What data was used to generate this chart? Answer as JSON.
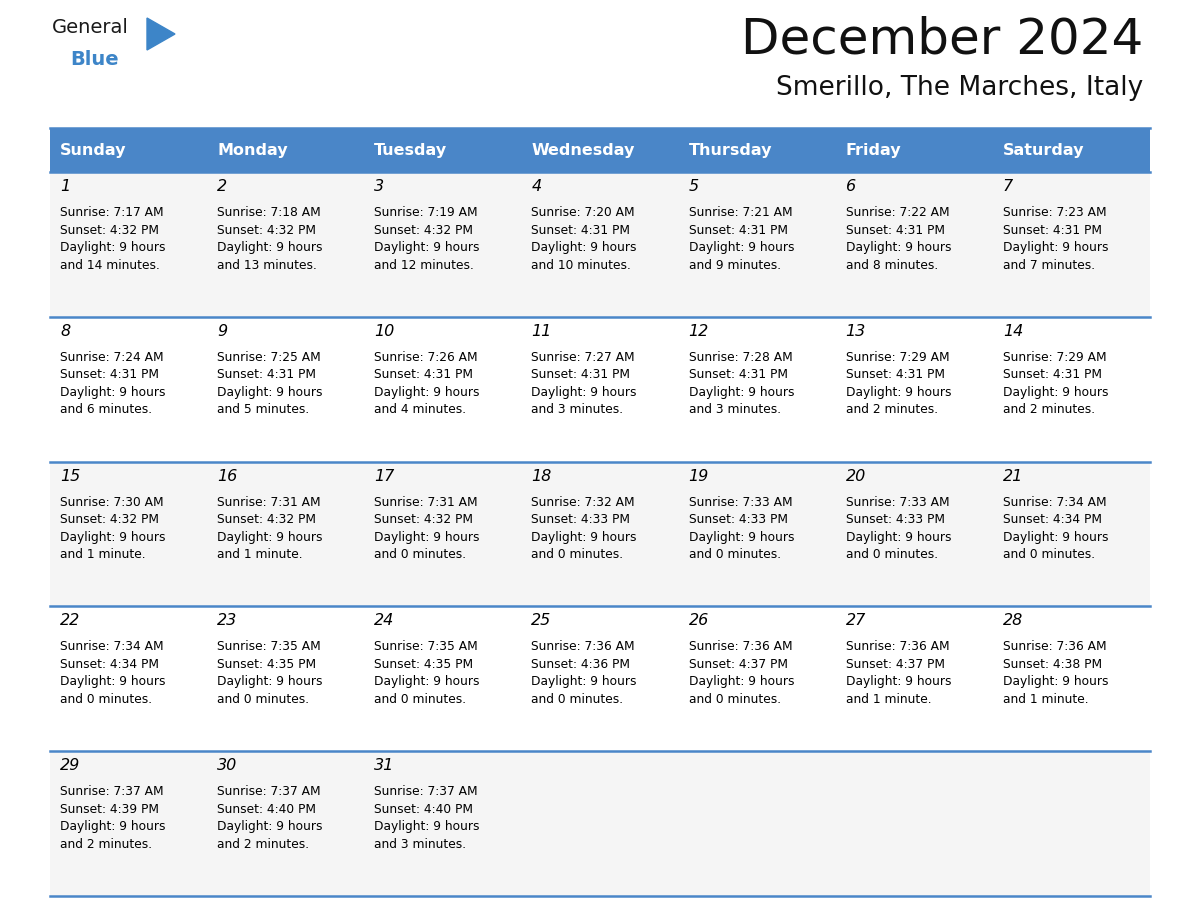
{
  "title": "December 2024",
  "subtitle": "Smerillo, The Marches, Italy",
  "header_color": "#4a86c8",
  "header_text_color": "#ffffff",
  "cell_bg_odd": "#f5f5f5",
  "cell_bg_even": "#ffffff",
  "border_color": "#4a86c8",
  "text_color": "#000000",
  "day_headers": [
    "Sunday",
    "Monday",
    "Tuesday",
    "Wednesday",
    "Thursday",
    "Friday",
    "Saturday"
  ],
  "weeks": [
    [
      {
        "day": "1",
        "sunrise": "7:17 AM",
        "sunset": "4:32 PM",
        "daylight": "9 hours",
        "daylight2": "and 14 minutes."
      },
      {
        "day": "2",
        "sunrise": "7:18 AM",
        "sunset": "4:32 PM",
        "daylight": "9 hours",
        "daylight2": "and 13 minutes."
      },
      {
        "day": "3",
        "sunrise": "7:19 AM",
        "sunset": "4:32 PM",
        "daylight": "9 hours",
        "daylight2": "and 12 minutes."
      },
      {
        "day": "4",
        "sunrise": "7:20 AM",
        "sunset": "4:31 PM",
        "daylight": "9 hours",
        "daylight2": "and 10 minutes."
      },
      {
        "day": "5",
        "sunrise": "7:21 AM",
        "sunset": "4:31 PM",
        "daylight": "9 hours",
        "daylight2": "and 9 minutes."
      },
      {
        "day": "6",
        "sunrise": "7:22 AM",
        "sunset": "4:31 PM",
        "daylight": "9 hours",
        "daylight2": "and 8 minutes."
      },
      {
        "day": "7",
        "sunrise": "7:23 AM",
        "sunset": "4:31 PM",
        "daylight": "9 hours",
        "daylight2": "and 7 minutes."
      }
    ],
    [
      {
        "day": "8",
        "sunrise": "7:24 AM",
        "sunset": "4:31 PM",
        "daylight": "9 hours",
        "daylight2": "and 6 minutes."
      },
      {
        "day": "9",
        "sunrise": "7:25 AM",
        "sunset": "4:31 PM",
        "daylight": "9 hours",
        "daylight2": "and 5 minutes."
      },
      {
        "day": "10",
        "sunrise": "7:26 AM",
        "sunset": "4:31 PM",
        "daylight": "9 hours",
        "daylight2": "and 4 minutes."
      },
      {
        "day": "11",
        "sunrise": "7:27 AM",
        "sunset": "4:31 PM",
        "daylight": "9 hours",
        "daylight2": "and 3 minutes."
      },
      {
        "day": "12",
        "sunrise": "7:28 AM",
        "sunset": "4:31 PM",
        "daylight": "9 hours",
        "daylight2": "and 3 minutes."
      },
      {
        "day": "13",
        "sunrise": "7:29 AM",
        "sunset": "4:31 PM",
        "daylight": "9 hours",
        "daylight2": "and 2 minutes."
      },
      {
        "day": "14",
        "sunrise": "7:29 AM",
        "sunset": "4:31 PM",
        "daylight": "9 hours",
        "daylight2": "and 2 minutes."
      }
    ],
    [
      {
        "day": "15",
        "sunrise": "7:30 AM",
        "sunset": "4:32 PM",
        "daylight": "9 hours",
        "daylight2": "and 1 minute."
      },
      {
        "day": "16",
        "sunrise": "7:31 AM",
        "sunset": "4:32 PM",
        "daylight": "9 hours",
        "daylight2": "and 1 minute."
      },
      {
        "day": "17",
        "sunrise": "7:31 AM",
        "sunset": "4:32 PM",
        "daylight": "9 hours",
        "daylight2": "and 0 minutes."
      },
      {
        "day": "18",
        "sunrise": "7:32 AM",
        "sunset": "4:33 PM",
        "daylight": "9 hours",
        "daylight2": "and 0 minutes."
      },
      {
        "day": "19",
        "sunrise": "7:33 AM",
        "sunset": "4:33 PM",
        "daylight": "9 hours",
        "daylight2": "and 0 minutes."
      },
      {
        "day": "20",
        "sunrise": "7:33 AM",
        "sunset": "4:33 PM",
        "daylight": "9 hours",
        "daylight2": "and 0 minutes."
      },
      {
        "day": "21",
        "sunrise": "7:34 AM",
        "sunset": "4:34 PM",
        "daylight": "9 hours",
        "daylight2": "and 0 minutes."
      }
    ],
    [
      {
        "day": "22",
        "sunrise": "7:34 AM",
        "sunset": "4:34 PM",
        "daylight": "9 hours",
        "daylight2": "and 0 minutes."
      },
      {
        "day": "23",
        "sunrise": "7:35 AM",
        "sunset": "4:35 PM",
        "daylight": "9 hours",
        "daylight2": "and 0 minutes."
      },
      {
        "day": "24",
        "sunrise": "7:35 AM",
        "sunset": "4:35 PM",
        "daylight": "9 hours",
        "daylight2": "and 0 minutes."
      },
      {
        "day": "25",
        "sunrise": "7:36 AM",
        "sunset": "4:36 PM",
        "daylight": "9 hours",
        "daylight2": "and 0 minutes."
      },
      {
        "day": "26",
        "sunrise": "7:36 AM",
        "sunset": "4:37 PM",
        "daylight": "9 hours",
        "daylight2": "and 0 minutes."
      },
      {
        "day": "27",
        "sunrise": "7:36 AM",
        "sunset": "4:37 PM",
        "daylight": "9 hours",
        "daylight2": "and 1 minute."
      },
      {
        "day": "28",
        "sunrise": "7:36 AM",
        "sunset": "4:38 PM",
        "daylight": "9 hours",
        "daylight2": "and 1 minute."
      }
    ],
    [
      {
        "day": "29",
        "sunrise": "7:37 AM",
        "sunset": "4:39 PM",
        "daylight": "9 hours",
        "daylight2": "and 2 minutes."
      },
      {
        "day": "30",
        "sunrise": "7:37 AM",
        "sunset": "4:40 PM",
        "daylight": "9 hours",
        "daylight2": "and 2 minutes."
      },
      {
        "day": "31",
        "sunrise": "7:37 AM",
        "sunset": "4:40 PM",
        "daylight": "9 hours",
        "daylight2": "and 3 minutes."
      },
      null,
      null,
      null,
      null
    ]
  ],
  "logo_color_general": "#1a1a1a",
  "logo_color_blue": "#3d85c8",
  "logo_triangle_color": "#3d85c8",
  "fig_width": 11.88,
  "fig_height": 9.18,
  "dpi": 100
}
